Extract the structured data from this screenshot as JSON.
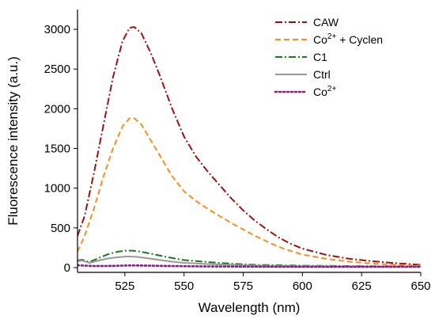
{
  "chart_data": {
    "type": "line",
    "xlabel": "Wavelength (nm)",
    "ylabel": "Fluorescence intensity (a.u.)",
    "xlim": [
      505,
      650
    ],
    "ylim": [
      -60,
      3250
    ],
    "x_ticks": [
      525,
      550,
      575,
      600,
      625,
      650
    ],
    "y_ticks": [
      0,
      500,
      1000,
      1500,
      2000,
      2500,
      3000
    ],
    "grid": false,
    "legend_position": "top-right",
    "series": [
      {
        "name": "CAW",
        "sup": "",
        "suffix": "",
        "color": "#a01010",
        "dash": "dash-dot",
        "points": [
          [
            505,
            400
          ],
          [
            508,
            650
          ],
          [
            512,
            1200
          ],
          [
            516,
            1800
          ],
          [
            520,
            2400
          ],
          [
            524,
            2850
          ],
          [
            527,
            3020
          ],
          [
            529,
            3030
          ],
          [
            532,
            2950
          ],
          [
            536,
            2700
          ],
          [
            540,
            2400
          ],
          [
            545,
            2000
          ],
          [
            550,
            1650
          ],
          [
            555,
            1400
          ],
          [
            560,
            1210
          ],
          [
            565,
            1040
          ],
          [
            570,
            870
          ],
          [
            575,
            720
          ],
          [
            580,
            590
          ],
          [
            585,
            480
          ],
          [
            590,
            380
          ],
          [
            595,
            300
          ],
          [
            600,
            240
          ],
          [
            610,
            160
          ],
          [
            620,
            110
          ],
          [
            630,
            80
          ],
          [
            640,
            55
          ],
          [
            650,
            35
          ]
        ]
      },
      {
        "name": "Co",
        "sup": "2+",
        "suffix": " + Cyclen",
        "color": "#ff8c1a",
        "dash": "dash",
        "points": [
          [
            505,
            200
          ],
          [
            508,
            400
          ],
          [
            512,
            750
          ],
          [
            516,
            1150
          ],
          [
            520,
            1500
          ],
          [
            524,
            1780
          ],
          [
            527,
            1880
          ],
          [
            529,
            1880
          ],
          [
            532,
            1800
          ],
          [
            536,
            1600
          ],
          [
            540,
            1400
          ],
          [
            545,
            1150
          ],
          [
            550,
            960
          ],
          [
            555,
            840
          ],
          [
            560,
            740
          ],
          [
            565,
            650
          ],
          [
            570,
            560
          ],
          [
            575,
            480
          ],
          [
            580,
            400
          ],
          [
            585,
            330
          ],
          [
            590,
            260
          ],
          [
            595,
            210
          ],
          [
            600,
            165
          ],
          [
            610,
            110
          ],
          [
            620,
            75
          ],
          [
            630,
            50
          ],
          [
            640,
            35
          ],
          [
            650,
            25
          ]
        ]
      },
      {
        "name": "C1",
        "sup": "",
        "suffix": "",
        "color": "#1a7a1a",
        "dash": "dash-dot",
        "points": [
          [
            505,
            90
          ],
          [
            507,
            100
          ],
          [
            510,
            70
          ],
          [
            514,
            120
          ],
          [
            518,
            170
          ],
          [
            522,
            200
          ],
          [
            526,
            215
          ],
          [
            530,
            210
          ],
          [
            535,
            180
          ],
          [
            540,
            150
          ],
          [
            545,
            120
          ],
          [
            550,
            95
          ],
          [
            560,
            70
          ],
          [
            570,
            50
          ],
          [
            580,
            35
          ],
          [
            600,
            25
          ],
          [
            620,
            20
          ],
          [
            650,
            15
          ]
        ]
      },
      {
        "name": "Ctrl",
        "sup": "",
        "suffix": "",
        "color": "#999999",
        "dash": "solid",
        "points": [
          [
            505,
            80
          ],
          [
            507,
            90
          ],
          [
            510,
            60
          ],
          [
            514,
            90
          ],
          [
            518,
            115
          ],
          [
            522,
            130
          ],
          [
            526,
            140
          ],
          [
            530,
            135
          ],
          [
            535,
            115
          ],
          [
            540,
            95
          ],
          [
            545,
            75
          ],
          [
            550,
            60
          ],
          [
            560,
            45
          ],
          [
            570,
            35
          ],
          [
            580,
            25
          ],
          [
            600,
            18
          ],
          [
            620,
            15
          ],
          [
            650,
            12
          ]
        ]
      },
      {
        "name": "Co",
        "sup": "2+",
        "suffix": "",
        "color": "#8b1a8b",
        "dash": "dot",
        "points": [
          [
            505,
            30
          ],
          [
            508,
            25
          ],
          [
            512,
            20
          ],
          [
            520,
            22
          ],
          [
            528,
            28
          ],
          [
            535,
            25
          ],
          [
            545,
            20
          ],
          [
            560,
            15
          ],
          [
            580,
            12
          ],
          [
            600,
            10
          ],
          [
            625,
            10
          ],
          [
            650,
            10
          ]
        ]
      }
    ]
  }
}
